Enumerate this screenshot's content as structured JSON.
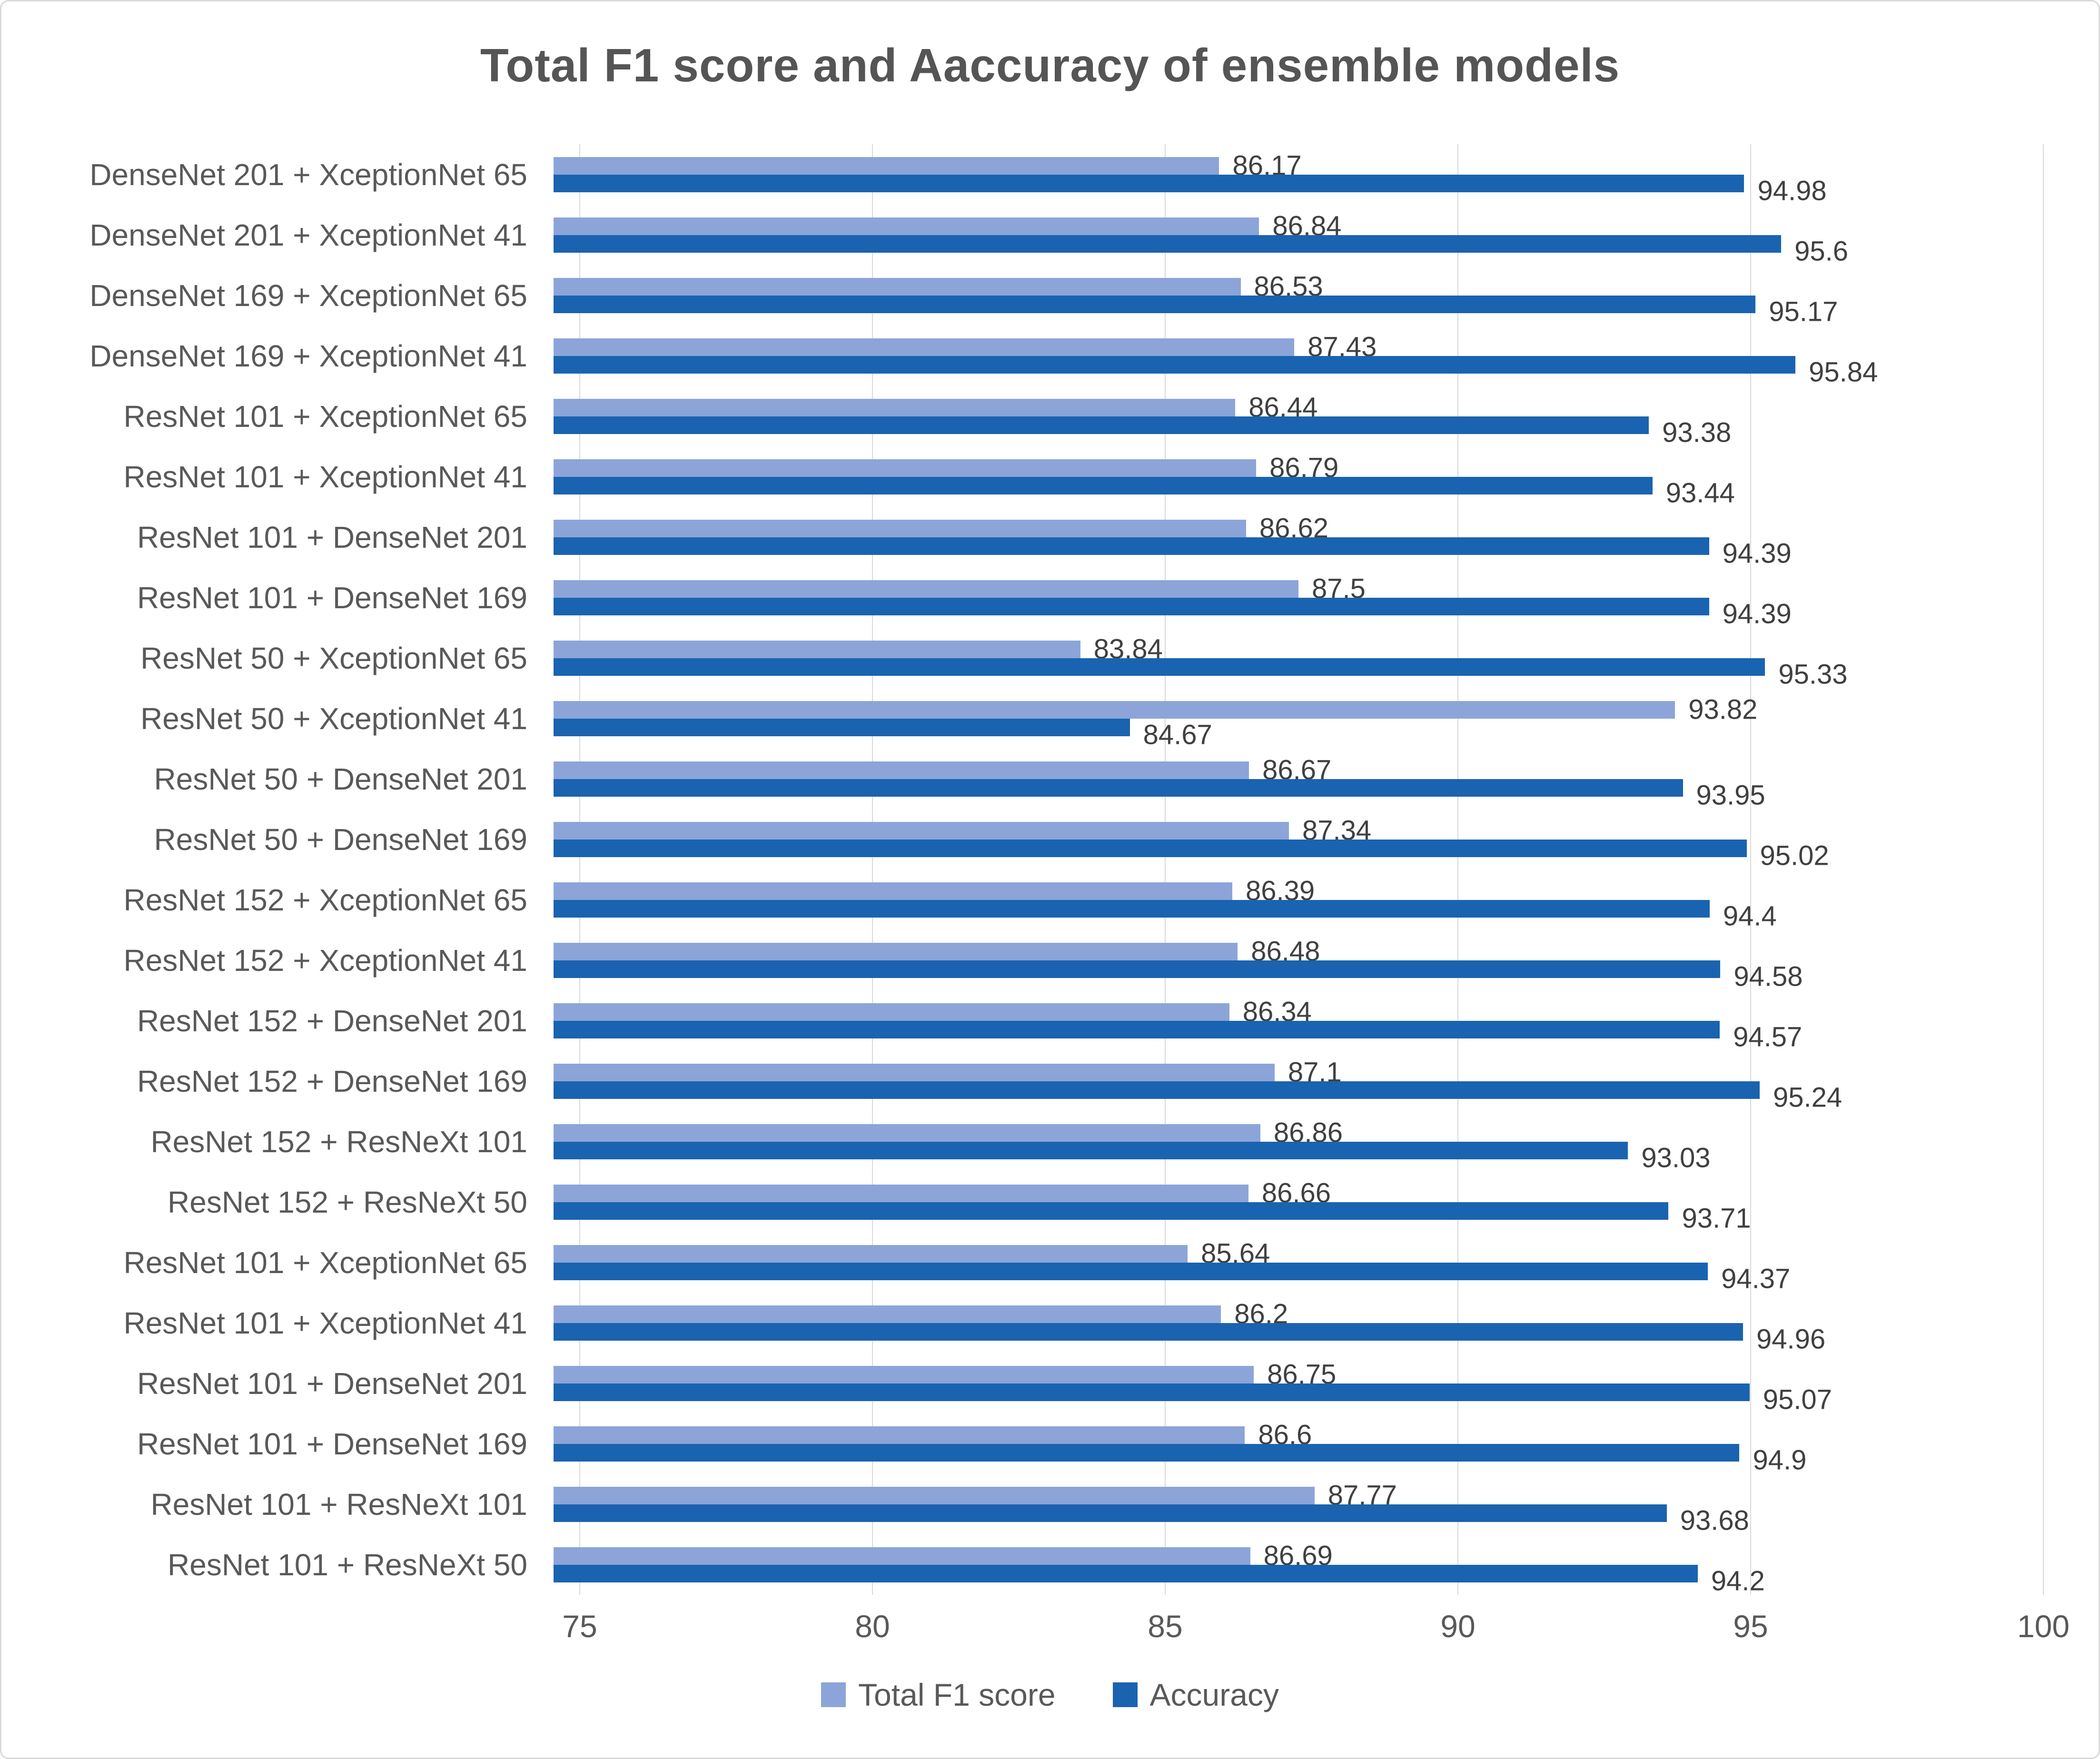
{
  "chart_data": {
    "type": "bar",
    "orientation": "horizontal",
    "title": "Total F1 score and Aaccuracy of ensemble models",
    "categories": [
      "DenseNet 201 + XceptionNet 65",
      "DenseNet 201 + XceptionNet 41",
      "DenseNet 169 + XceptionNet 65",
      "DenseNet 169 + XceptionNet 41",
      "ResNet 101 + XceptionNet 65",
      "ResNet 101 + XceptionNet 41",
      "ResNet 101 + DenseNet 201",
      "ResNet 101 + DenseNet 169",
      "ResNet 50 + XceptionNet 65",
      "ResNet 50 + XceptionNet 41",
      "ResNet 50 + DenseNet 201",
      "ResNet 50 + DenseNet 169",
      "ResNet 152 + XceptionNet 65",
      "ResNet 152 + XceptionNet 41",
      "ResNet 152 + DenseNet 201",
      "ResNet 152 + DenseNet 169",
      "ResNet 152 + ResNeXt 101",
      "ResNet 152 + ResNeXt 50",
      "ResNet 101 + XceptionNet 65",
      "ResNet 101 + XceptionNet 41",
      "ResNet 101 + DenseNet 201",
      "ResNet 101 + DenseNet 169",
      "ResNet 101 + ResNeXt 101",
      "ResNet 101 + ResNeXt 50"
    ],
    "series": [
      {
        "name": "Total F1 score",
        "color": "#8CA4D8",
        "values": [
          86.17,
          86.84,
          86.53,
          87.43,
          86.44,
          86.79,
          86.62,
          87.5,
          83.84,
          93.82,
          86.67,
          87.34,
          86.39,
          86.48,
          86.34,
          87.1,
          86.86,
          86.66,
          85.64,
          86.2,
          86.75,
          86.6,
          87.77,
          86.69
        ]
      },
      {
        "name": "Accuracy",
        "color": "#1A63B0",
        "values": [
          94.98,
          95.6,
          95.17,
          95.84,
          93.38,
          93.44,
          94.39,
          94.39,
          95.33,
          84.67,
          93.95,
          95.02,
          94.4,
          94.58,
          94.57,
          95.24,
          93.03,
          93.71,
          94.37,
          94.96,
          95.07,
          94.9,
          93.68,
          94.2
        ]
      }
    ],
    "xlim": [
      75,
      100
    ],
    "xticks": [
      75,
      80,
      85,
      90,
      95,
      100
    ],
    "grid": true,
    "legend_position": "bottom"
  }
}
